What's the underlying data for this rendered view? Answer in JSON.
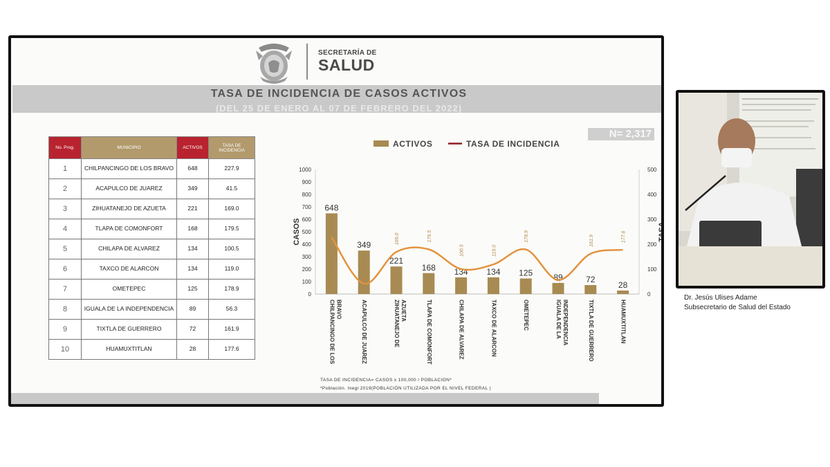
{
  "header": {
    "logo_top": "SECRETARÍA DE",
    "logo_main": "SALUD",
    "title": "TASA DE INCIDENCIA DE CASOS ACTIVOS",
    "subtitle": "(DEL 25 DE ENERO AL 07 DE FEBRERO DEL 2022)"
  },
  "table": {
    "headers": [
      "No. Prog.",
      "MUNICIPIO",
      "ACTIVOS",
      "TASA DE INCIDENCIA"
    ],
    "rows": [
      {
        "no": "1",
        "municipio": "CHILPANCINGO DE LOS BRAVO",
        "activos": "648",
        "tasa": "227.9"
      },
      {
        "no": "2",
        "municipio": "ACAPULCO DE JUAREZ",
        "activos": "349",
        "tasa": "41.5"
      },
      {
        "no": "3",
        "municipio": "ZIHUATANEJO DE AZUETA",
        "activos": "221",
        "tasa": "169.0"
      },
      {
        "no": "4",
        "municipio": "TLAPA DE COMONFORT",
        "activos": "168",
        "tasa": "179.5"
      },
      {
        "no": "5",
        "municipio": "CHILAPA DE ALVAREZ",
        "activos": "134",
        "tasa": "100.5"
      },
      {
        "no": "6",
        "municipio": "TAXCO DE ALARCON",
        "activos": "134",
        "tasa": "119.0"
      },
      {
        "no": "7",
        "municipio": "OMETEPEC",
        "activos": "125",
        "tasa": "178.9"
      },
      {
        "no": "8",
        "municipio": "IGUALA DE LA INDEPENDENCIA",
        "activos": "89",
        "tasa": "56.3"
      },
      {
        "no": "9",
        "municipio": "TIXTLA DE GUERRERO",
        "activos": "72",
        "tasa": "161.9"
      },
      {
        "no": "10",
        "municipio": "HUAMUXTITLAN",
        "activos": "28",
        "tasa": "177.6"
      }
    ]
  },
  "n_label": "N= 2,317",
  "chart_data": {
    "type": "bar",
    "categories": [
      "CHILPANCINGO DE LOS BRAVO",
      "ACAPULCO DE JUAREZ",
      "ZIHUATANEJO DE AZUETA",
      "TLAPA DE COMONFORT",
      "CHILAPA DE ALVAREZ",
      "TAXCO DE ALARCON",
      "OMETEPEC",
      "IGUALA DE LA INDEPENDENCIA",
      "TIXTLA DE GUERRERO",
      "HUAMUXTITLAN"
    ],
    "series": [
      {
        "name": "ACTIVOS",
        "type": "bar",
        "axis": "left",
        "color": "#a88b53",
        "values": [
          648,
          349,
          221,
          168,
          134,
          134,
          125,
          89,
          72,
          28
        ]
      },
      {
        "name": "TASA DE INCIDENCIA",
        "type": "line",
        "axis": "right",
        "color": "#e3933e",
        "values": [
          227.9,
          41.5,
          169.0,
          179.5,
          100.5,
          119.0,
          178.9,
          56.3,
          161.9,
          177.6
        ]
      }
    ],
    "ylabel": "CASOS",
    "y2label": "TASA",
    "ylim": [
      0,
      1000
    ],
    "y2lim": [
      0,
      500
    ],
    "yticks": [
      0,
      100,
      200,
      300,
      400,
      500,
      600,
      700,
      800,
      900,
      1000
    ],
    "y2ticks": [
      0,
      100,
      200,
      300,
      400,
      500
    ],
    "legend_position": "top"
  },
  "footnotes": [
    "TASA DE INCIDENCIA= CASOS x 100,000 / POBLACION*",
    "*Población.  Inegi 2019(POBLACIÓN UTILIZADA POR EL NIVEL FEDERAL )"
  ],
  "caption": {
    "name": "Dr. Jesús Ulises Adame",
    "role": "Subsecretario de Salud del Estado"
  },
  "colors": {
    "header_red": "#b8232f",
    "header_tan": "#b29a6c",
    "bar": "#a88b53",
    "line": "#e3933e",
    "legend_line": "#8e1d22"
  }
}
